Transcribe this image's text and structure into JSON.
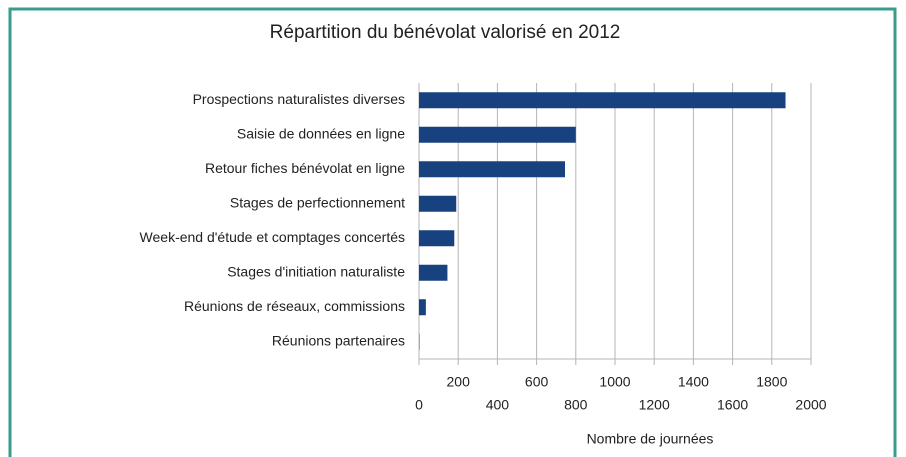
{
  "chart_data": {
    "type": "bar",
    "orientation": "horizontal",
    "title": "Répartition du bénévolat valorisé en 2012",
    "categories": [
      "Prospections naturalistes diverses",
      "Saisie de données en ligne",
      "Retour fiches bénévolat en ligne",
      "Stages de perfectionnement",
      "Week-end d'étude et comptages concertés",
      "Stages d'initiation naturaliste",
      "Réunions de réseaux, commissions",
      "Réunions partenaires"
    ],
    "values": [
      1870,
      800,
      745,
      190,
      180,
      145,
      35,
      2
    ],
    "color": "#17417f",
    "xlabel": "Nombre de journées",
    "xlim": [
      0,
      2000
    ],
    "xticks": [
      0,
      200,
      400,
      600,
      800,
      1000,
      1200,
      1400,
      1600,
      1800,
      2000
    ],
    "grid": true
  }
}
